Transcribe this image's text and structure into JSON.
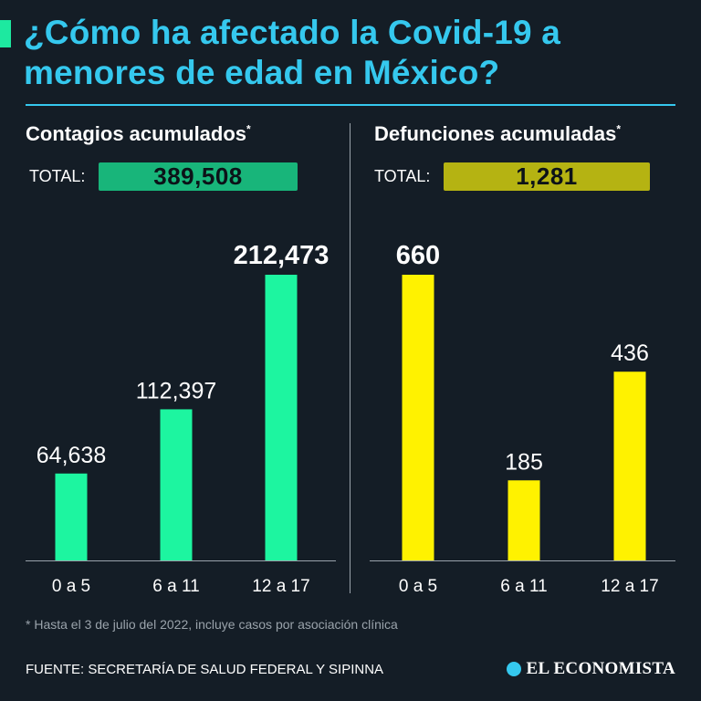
{
  "title": {
    "line1": "¿Cómo ha afectado la Covid-19 a",
    "line2": "menores de edad en México?"
  },
  "chart_data": [
    {
      "type": "bar",
      "title": "Contagios acumulados",
      "title_marker": "*",
      "total_label": "TOTAL:",
      "total_value": "389,508",
      "categories": [
        "0 a 5",
        "6 a 11",
        "12 a 17"
      ],
      "values": [
        64638,
        112397,
        212473
      ],
      "value_labels": [
        "64,638",
        "112,397",
        "212,473"
      ],
      "highlight_index": 2,
      "ylim": [
        0,
        212473
      ],
      "color": "#1df5a0",
      "total_box_color": "#18b57a"
    },
    {
      "type": "bar",
      "title": "Defunciones acumuladas",
      "title_marker": "*",
      "total_label": "TOTAL:",
      "total_value": "1,281",
      "categories": [
        "0 a 5",
        "6 a 11",
        "12 a 17"
      ],
      "values": [
        660,
        185,
        436
      ],
      "value_labels": [
        "660",
        "185",
        "436"
      ],
      "highlight_index": 0,
      "ylim": [
        0,
        660
      ],
      "color": "#fff200",
      "total_box_color": "#b5b312"
    }
  ],
  "footnote": "* Hasta el 3 de julio del 2022, incluye casos por asociación clínica",
  "source": "FUENTE: SECRETARÍA DE SALUD FEDERAL Y SIPINNA",
  "brand": "EL ECONOMISTA",
  "brand_icon": "el-economista-logo-icon"
}
